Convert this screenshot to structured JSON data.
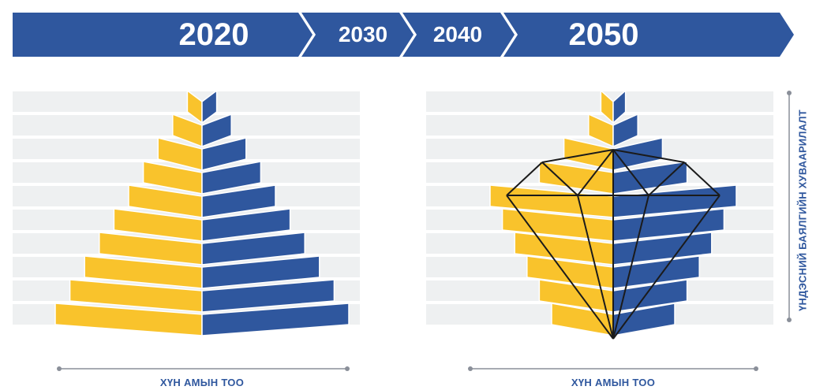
{
  "timeline": {
    "years": [
      "2020",
      "2030",
      "2040",
      "2050"
    ],
    "color": "#2f579e",
    "text_color": "#ffffff"
  },
  "colors": {
    "yellow_front": "#f9c32c",
    "yellow_side": "#f4b41a",
    "blue_front": "#2f579e",
    "blue_side": "#27498a",
    "stripe": "#eef0f1",
    "axis": "#8a8f99",
    "label": "#2f579e"
  },
  "left_pyramid": {
    "year": "2020",
    "tiers_from_top": [
      1,
      2,
      3,
      4,
      5,
      6,
      7,
      8,
      9,
      10
    ],
    "axis_label": "ХҮН АМЫН ТОО"
  },
  "right_pyramid": {
    "year": "2050",
    "tiers_from_top": [
      1,
      2,
      4,
      6,
      10,
      9,
      8,
      7,
      6,
      5
    ],
    "shape_overlay": "diamond-icon",
    "axis_label": "ХҮН АМЫН ТОО"
  },
  "side_axis": {
    "label": "ҮНДЭСНИЙ БАЯЛГИЙН ХУВААРИЛАЛТ"
  }
}
